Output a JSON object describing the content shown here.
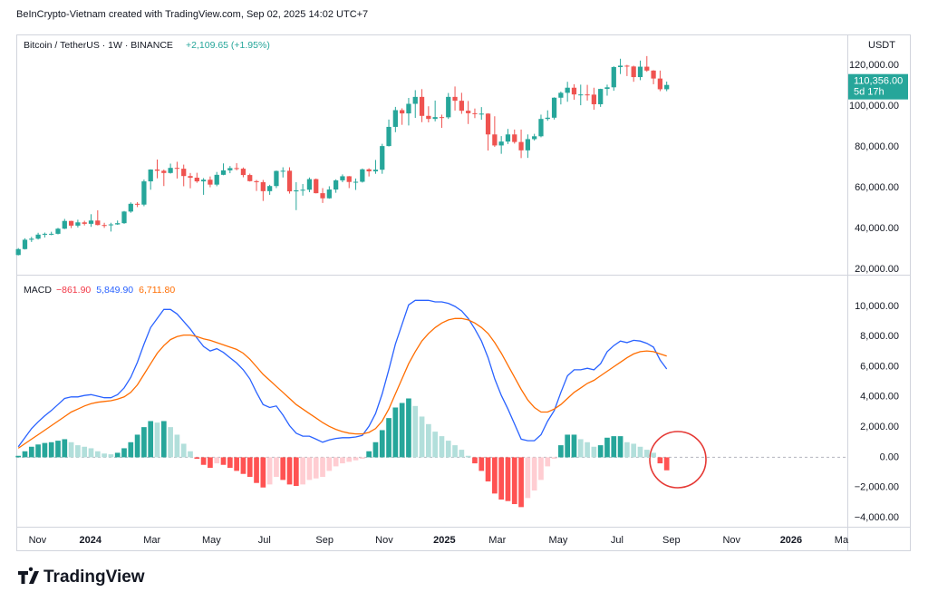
{
  "page": {
    "attribution": "BeInCrypto-Vietnam created with TradingView.com, Sep 02, 2025 14:02 UTC+7",
    "logo": "TradingView"
  },
  "chart_data": [
    {
      "type": "candlestick",
      "title": "Bitcoin / TetherUS · 1W · BINANCE",
      "change_label": "+2,109.65 (+1.95%)",
      "y_unit": "USDT",
      "colors": {
        "up": "#26a69a",
        "down": "#ef5350"
      },
      "open": [
        27000,
        29900,
        34500,
        35000,
        37000,
        37400,
        37400,
        39900,
        43700,
        41400,
        43000,
        42300,
        43900,
        41700,
        41600,
        42000,
        42600,
        48300,
        52100,
        51700,
        63100,
        68900,
        68300,
        67200,
        69700,
        69300,
        65700,
        64900,
        63100,
        63900,
        61500,
        66300,
        68500,
        69600,
        69300,
        66200,
        63200,
        62700,
        58300,
        60800,
        68200,
        68300,
        58200,
        58700,
        59000,
        64200,
        57300,
        54800,
        59100,
        63600,
        65600,
        62800,
        62900,
        69000,
        68000,
        68800,
        80400,
        89800,
        98000,
        96400,
        101100,
        104500,
        95200,
        93700,
        94600,
        94500,
        104500,
        102600,
        97700,
        96500,
        96100,
        96300,
        86100,
        80700,
        82600,
        86100,
        82400,
        78300,
        83800,
        85200,
        93700,
        94300,
        104100,
        106500,
        109000,
        105700,
        105700,
        105600,
        100900,
        108400,
        109200,
        119100,
        119800,
        119400,
        114200,
        119300,
        117400,
        113500,
        108246.35
      ],
      "high": [
        30400,
        35200,
        35900,
        37900,
        38000,
        38400,
        40300,
        44700,
        43800,
        44300,
        43800,
        47000,
        48900,
        42800,
        42800,
        43900,
        48600,
        52800,
        52900,
        64000,
        69000,
        73800,
        68900,
        71800,
        72700,
        71300,
        67200,
        67300,
        64700,
        65500,
        67700,
        71900,
        70600,
        72000,
        69900,
        66900,
        63800,
        63800,
        61400,
        68400,
        70000,
        70000,
        62700,
        61800,
        65000,
        64500,
        59800,
        60700,
        64100,
        66500,
        65700,
        64500,
        69400,
        69500,
        73600,
        81500,
        93400,
        99600,
        98900,
        104000,
        107800,
        108300,
        99900,
        102700,
        95800,
        106400,
        109600,
        106500,
        102500,
        98800,
        99500,
        96500,
        95000,
        85300,
        88800,
        88500,
        88500,
        86100,
        86400,
        95800,
        97900,
        104300,
        107100,
        111900,
        110700,
        110500,
        110400,
        109000,
        108500,
        110500,
        119500,
        123200,
        120200,
        119800,
        122300,
        124500,
        117600,
        117400,
        112000
      ],
      "low": [
        26800,
        29700,
        33400,
        34600,
        35600,
        36700,
        37100,
        39700,
        40200,
        40500,
        41500,
        40800,
        41500,
        40300,
        38500,
        41800,
        42300,
        47700,
        50500,
        50900,
        59000,
        64600,
        60800,
        66900,
        64500,
        60700,
        59700,
        62400,
        56500,
        60200,
        60700,
        66100,
        67100,
        68500,
        65100,
        63000,
        58400,
        53500,
        56500,
        59800,
        65000,
        57100,
        49000,
        56100,
        57800,
        57200,
        52500,
        54600,
        57500,
        62700,
        59800,
        58900,
        62500,
        65500,
        66800,
        66800,
        80200,
        87200,
        90800,
        90500,
        94200,
        92100,
        92000,
        92500,
        89300,
        93700,
        97800,
        96200,
        91200,
        94100,
        93300,
        78200,
        80000,
        76600,
        81400,
        81600,
        74500,
        74600,
        83100,
        84700,
        92800,
        93400,
        100800,
        102100,
        103100,
        100400,
        102700,
        98200,
        99600,
        105100,
        107500,
        115700,
        114700,
        111900,
        112700,
        116800,
        110700,
        107300,
        107300
      ],
      "close": [
        29900,
        34500,
        35000,
        37000,
        37400,
        37400,
        39900,
        43700,
        41400,
        43000,
        42300,
        43900,
        41700,
        41600,
        42000,
        42600,
        48300,
        52100,
        51700,
        63100,
        68900,
        68300,
        67200,
        69700,
        69300,
        65700,
        64900,
        63100,
        63900,
        61500,
        66300,
        68500,
        69600,
        69300,
        66200,
        63200,
        62700,
        58300,
        60800,
        68200,
        68300,
        58200,
        58700,
        59000,
        64200,
        57300,
        54800,
        59100,
        63600,
        65600,
        62800,
        62900,
        69000,
        68000,
        68800,
        80400,
        89800,
        98000,
        96400,
        101100,
        104500,
        95200,
        93700,
        94600,
        94500,
        104500,
        102600,
        97700,
        96500,
        96100,
        96300,
        86100,
        80700,
        82600,
        86100,
        82400,
        78300,
        83800,
        85200,
        93700,
        94300,
        104100,
        106500,
        109000,
        105700,
        105700,
        105600,
        100900,
        108400,
        109200,
        119100,
        119800,
        119400,
        114200,
        119300,
        117400,
        113500,
        108246.35,
        110356
      ],
      "last_price": {
        "value": 110356,
        "label": "110,356.00"
      },
      "countdown": "5d 17h",
      "xlim": [
        -0.3,
        125.3
      ],
      "ylim": [
        17800,
        135100
      ],
      "yticks": [
        {
          "value": 20000,
          "label": "20,000.00"
        },
        {
          "value": 40000,
          "label": "40,000.00"
        },
        {
          "value": 60000,
          "label": "60,000.00"
        },
        {
          "value": 80000,
          "label": "80,000.00"
        },
        {
          "value": 100000,
          "label": "100,000.00"
        },
        {
          "value": 120000,
          "label": "120,000.00"
        }
      ]
    },
    {
      "type": "macd",
      "title": "MACD",
      "series": [
        {
          "style": "histogram",
          "colors": [
            "#26a69a",
            "#b2dfdb",
            "#ffcdd2",
            "#ff5252"
          ],
          "color": "#f23645",
          "last_label": "−861.90",
          "values": [
            100,
            400,
            700,
            850,
            950,
            1000,
            1100,
            1200,
            1000,
            800,
            700,
            600,
            400,
            250,
            200,
            300,
            600,
            1000,
            1500,
            2000,
            2400,
            2300,
            2400,
            2000,
            1500,
            900,
            400,
            -100,
            -500,
            -700,
            -400,
            -500,
            -700,
            -900,
            -1100,
            -1300,
            -1700,
            -2000,
            -1800,
            -1300,
            -1500,
            -1800,
            -1900,
            -1800,
            -1500,
            -1400,
            -1300,
            -900,
            -600,
            -400,
            -300,
            -200,
            -100,
            400,
            1000,
            1800,
            2600,
            3300,
            3600,
            3900,
            3400,
            2700,
            2200,
            1700,
            1400,
            1100,
            800,
            500,
            100,
            -400,
            -900,
            -1600,
            -2400,
            -2800,
            -2900,
            -3100,
            -3300,
            -2700,
            -2200,
            -1500,
            -600,
            -100,
            800,
            1500,
            1500,
            1200,
            1000,
            700,
            800,
            1300,
            1400,
            1400,
            1000,
            900,
            700,
            500,
            300,
            -400,
            -861.9
          ]
        },
        {
          "style": "line",
          "color": "#2962ff",
          "last_label": "5,849.90",
          "values": [
            700,
            1300,
            1900,
            2350,
            2750,
            3100,
            3500,
            3900,
            4000,
            4000,
            4100,
            4150,
            4050,
            3950,
            3950,
            4150,
            4600,
            5300,
            6300,
            7500,
            8600,
            9200,
            9800,
            9800,
            9500,
            9000,
            8500,
            7900,
            7350,
            7050,
            7200,
            6950,
            6600,
            6250,
            5800,
            5200,
            4300,
            3500,
            3300,
            3400,
            2800,
            2100,
            1600,
            1400,
            1400,
            1200,
            1000,
            1150,
            1250,
            1300,
            1300,
            1350,
            1450,
            2050,
            2900,
            4200,
            5800,
            7500,
            8800,
            10100,
            10400,
            10400,
            10400,
            10300,
            10300,
            10200,
            10000,
            9700,
            9200,
            8500,
            7700,
            6600,
            5200,
            4100,
            3200,
            2200,
            1200,
            1100,
            1100,
            1500,
            2400,
            3100,
            4300,
            5400,
            5800,
            5800,
            5900,
            5800,
            6200,
            7000,
            7400,
            7700,
            7600,
            7750,
            7700,
            7550,
            7300,
            6450,
            5849.9
          ]
        },
        {
          "style": "line",
          "color": "#ff6d00",
          "last_label": "6,711.80",
          "values": [
            600,
            900,
            1200,
            1500,
            1800,
            2100,
            2400,
            2700,
            3000,
            3200,
            3400,
            3550,
            3650,
            3700,
            3750,
            3850,
            4000,
            4300,
            4800,
            5500,
            6200,
            6900,
            7400,
            7800,
            8000,
            8100,
            8100,
            8000,
            7850,
            7750,
            7600,
            7450,
            7300,
            7150,
            6900,
            6500,
            6000,
            5500,
            5100,
            4700,
            4300,
            3900,
            3500,
            3200,
            2900,
            2600,
            2300,
            2050,
            1850,
            1700,
            1600,
            1550,
            1550,
            1650,
            1900,
            2400,
            3200,
            4200,
            5200,
            6200,
            7000,
            7700,
            8200,
            8600,
            8900,
            9100,
            9200,
            9200,
            9100,
            8900,
            8600,
            8200,
            7600,
            6900,
            6100,
            5300,
            4500,
            3800,
            3300,
            3000,
            3000,
            3200,
            3500,
            3900,
            4300,
            4600,
            4900,
            5100,
            5400,
            5700,
            6000,
            6300,
            6600,
            6850,
            7000,
            7050,
            7000,
            6850,
            6711.8
          ]
        }
      ],
      "zero_line": 0,
      "xlim": [
        -0.3,
        125.3
      ],
      "ylim": [
        -4540,
        11980
      ],
      "yticks": [
        {
          "value": -4000,
          "label": "−4,000.00"
        },
        {
          "value": -2000,
          "label": "−2,000.00"
        },
        {
          "value": 0,
          "label": "0.00"
        },
        {
          "value": 2000,
          "label": "2,000.00"
        },
        {
          "value": 4000,
          "label": "4,000.00"
        },
        {
          "value": 6000,
          "label": "6,000.00"
        },
        {
          "value": 8000,
          "label": "8,000.00"
        },
        {
          "value": 10000,
          "label": "10,000.00"
        }
      ],
      "xticks": [
        {
          "value": 2.9,
          "label": "Nov"
        },
        {
          "value": 10.9,
          "label": "2024"
        },
        {
          "value": 20.2,
          "label": "Mar"
        },
        {
          "value": 29.2,
          "label": "May"
        },
        {
          "value": 37.2,
          "label": "Jul"
        },
        {
          "value": 46.3,
          "label": "Sep"
        },
        {
          "value": 55.3,
          "label": "Nov"
        },
        {
          "value": 64.4,
          "label": "2025"
        },
        {
          "value": 72.4,
          "label": "Mar"
        },
        {
          "value": 81.6,
          "label": "May"
        },
        {
          "value": 90.5,
          "label": "Jul"
        },
        {
          "value": 98.7,
          "label": "Sep"
        },
        {
          "value": 107.8,
          "label": "Nov"
        },
        {
          "value": 116.8,
          "label": "2026"
        },
        {
          "value": 124.4,
          "label": "Ma"
        }
      ]
    }
  ]
}
